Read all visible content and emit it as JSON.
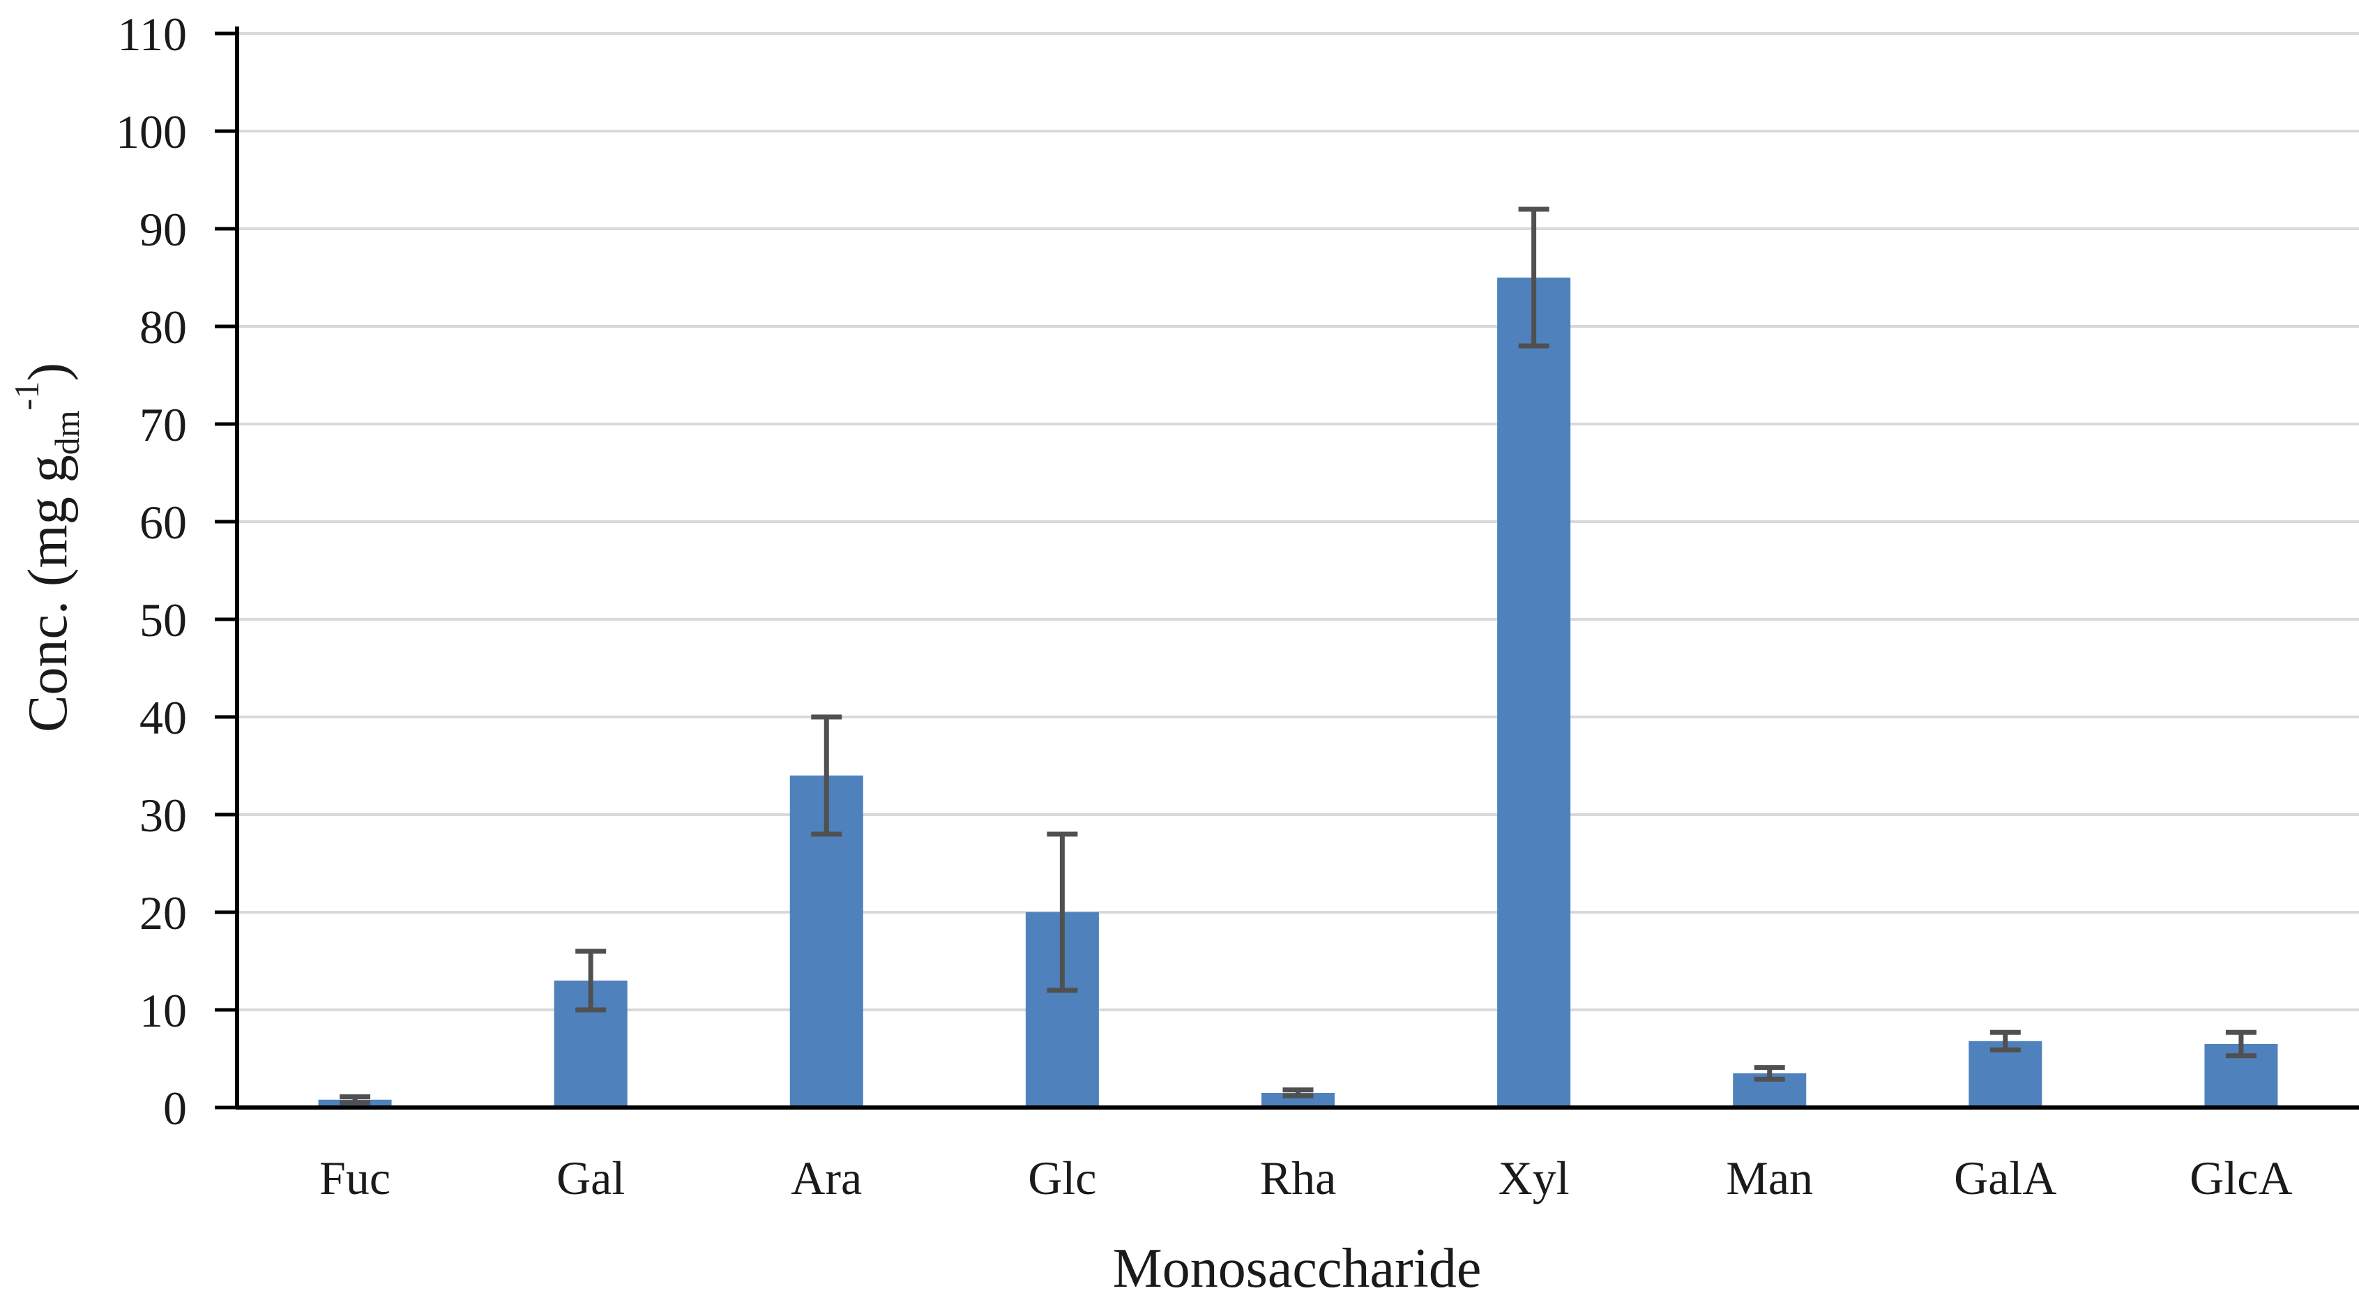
{
  "chart_data": {
    "type": "bar",
    "title": "",
    "xlabel": "Monosaccharide",
    "ylabel": {
      "main": "Conc. (mg g",
      "subscript": "dm",
      "superscript": "-1",
      "close": ")"
    },
    "categories": [
      "Fuc",
      "Gal",
      "Ara",
      "Glc",
      "Rha",
      "Xyl",
      "Man",
      "GalA",
      "GlcA"
    ],
    "series": [
      {
        "values": [
          0.8,
          13,
          34,
          20,
          1.5,
          85,
          3.5,
          6.8,
          6.5
        ],
        "error_low": [
          0.3,
          3,
          6,
          8,
          0.3,
          7,
          0.6,
          0.9,
          1.2
        ],
        "error_high": [
          0.3,
          3,
          6,
          8,
          0.3,
          7,
          0.6,
          0.9,
          1.2
        ]
      }
    ],
    "ylim": [
      0,
      110
    ],
    "yticks": [
      0,
      10,
      20,
      30,
      40,
      50,
      60,
      70,
      80,
      90,
      100,
      110
    ],
    "grid": true,
    "legend": "none",
    "colors": {
      "bar": "#4f81bd",
      "error": "#505050",
      "grid": "#d9d9d9",
      "axis": "#000000"
    }
  }
}
